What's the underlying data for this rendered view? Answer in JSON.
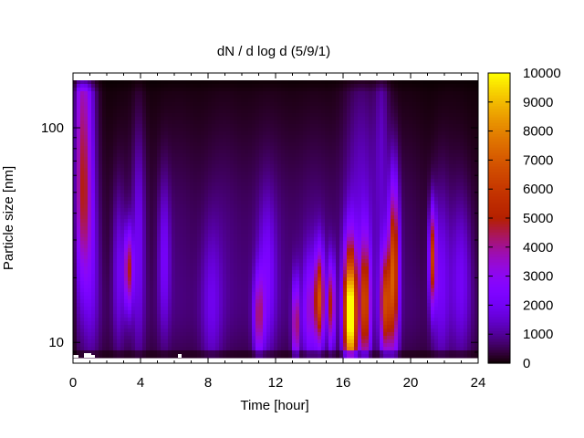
{
  "chart_data": {
    "type": "heatmap",
    "title": "dN / d log d (5/9/1)",
    "xlabel": "Time [hour]",
    "ylabel": "Particle size [nm]",
    "xlim": [
      0,
      24
    ],
    "ylim": [
      8,
      180
    ],
    "yscale": "log",
    "x_ticks": [
      0,
      4,
      8,
      12,
      16,
      20,
      24
    ],
    "y_ticks": [
      10,
      100
    ],
    "colorbar": {
      "range": [
        0,
        10000
      ],
      "ticks": [
        0,
        1000,
        2000,
        3000,
        4000,
        5000,
        6000,
        7000,
        8000,
        9000,
        10000
      ],
      "colormap": "gnuplot pm3d (black-purple-red-orange-yellow)",
      "colors": [
        "#000000",
        "#5a0098",
        "#8f19ff",
        "#b30d5c",
        "#d12e00",
        "#ec7a00",
        "#ffd000",
        "#ffff20"
      ]
    },
    "base_level": 800,
    "events": [
      {
        "time": 0.6,
        "size": 120,
        "peak": 3500,
        "duration": 0.6,
        "spread": 0.55
      },
      {
        "time": 0.6,
        "size": 40,
        "peak": 2400,
        "duration": 0.5,
        "spread": 0.35
      },
      {
        "time": 1.1,
        "size": 20,
        "peak": 1100,
        "duration": 0.5,
        "spread": 0.4
      },
      {
        "time": 2.7,
        "size": 22,
        "peak": 1400,
        "duration": 0.35,
        "spread": 0.35
      },
      {
        "time": 3.3,
        "size": 22,
        "peak": 4200,
        "duration": 0.25,
        "spread": 0.18
      },
      {
        "time": 3.9,
        "size": 30,
        "peak": 1500,
        "duration": 0.35,
        "spread": 0.5
      },
      {
        "time": 5.4,
        "size": 25,
        "peak": 1600,
        "duration": 0.35,
        "spread": 0.35
      },
      {
        "time": 8.2,
        "size": 15,
        "peak": 1100,
        "duration": 0.6,
        "spread": 0.35
      },
      {
        "time": 11.0,
        "size": 13,
        "peak": 3200,
        "duration": 0.3,
        "spread": 0.2
      },
      {
        "time": 11.5,
        "size": 20,
        "peak": 1500,
        "duration": 0.5,
        "spread": 0.35
      },
      {
        "time": 13.2,
        "size": 12,
        "peak": 4200,
        "duration": 0.2,
        "spread": 0.2
      },
      {
        "time": 14.0,
        "size": 14,
        "peak": 2500,
        "duration": 0.4,
        "spread": 0.25
      },
      {
        "time": 14.6,
        "size": 16,
        "peak": 5600,
        "duration": 0.28,
        "spread": 0.22
      },
      {
        "time": 15.3,
        "size": 15,
        "peak": 4400,
        "duration": 0.22,
        "spread": 0.2
      },
      {
        "time": 16.3,
        "size": 14,
        "peak": 4200,
        "duration": 0.35,
        "spread": 0.3
      },
      {
        "time": 16.5,
        "size": 13,
        "peak": 7000,
        "duration": 0.35,
        "spread": 0.32
      },
      {
        "time": 17.3,
        "size": 15,
        "peak": 5600,
        "duration": 0.32,
        "spread": 0.3
      },
      {
        "time": 17.1,
        "size": 60,
        "peak": 900,
        "duration": 1.0,
        "spread": 0.6
      },
      {
        "time": 18.5,
        "size": 15,
        "peak": 5500,
        "duration": 0.32,
        "spread": 0.25
      },
      {
        "time": 19.0,
        "size": 22,
        "peak": 6200,
        "duration": 0.3,
        "spread": 0.4
      },
      {
        "time": 18.3,
        "size": 90,
        "peak": 1000,
        "duration": 0.4,
        "spread": 0.6
      },
      {
        "time": 21.3,
        "size": 25,
        "peak": 5200,
        "duration": 0.2,
        "spread": 0.22
      },
      {
        "time": 21.8,
        "size": 20,
        "peak": 1600,
        "duration": 0.5,
        "spread": 0.4
      },
      {
        "time": 23.0,
        "size": 20,
        "peak": 1500,
        "duration": 0.6,
        "spread": 0.35
      }
    ]
  }
}
